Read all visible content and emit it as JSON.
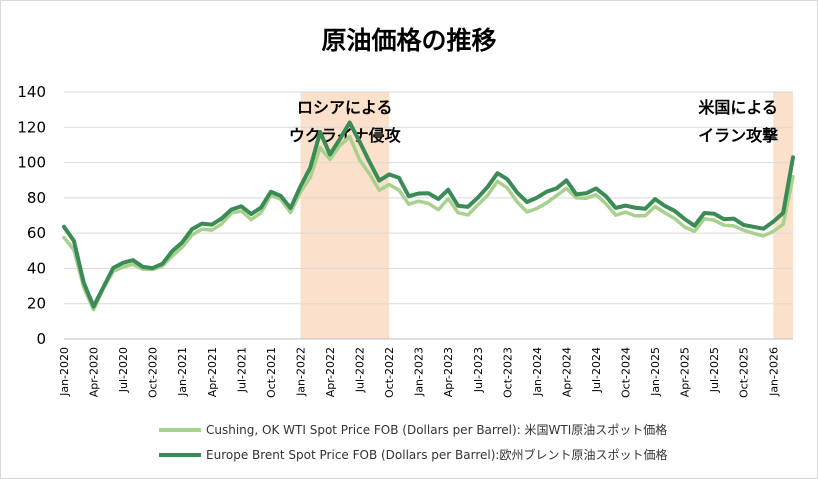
{
  "chart_data": {
    "type": "line",
    "title": "原油価格の推移",
    "ylim": [
      0,
      140
    ],
    "yticks": [
      "0",
      "20",
      "40",
      "60",
      "80",
      "100",
      "120",
      "140"
    ],
    "xticklabels": [
      "Jan-2020",
      "Apr-2020",
      "Jul-2020",
      "Oct-2020",
      "Jan-2021",
      "Apr-2021",
      "Jul-2021",
      "Oct-2021",
      "Jan-2022",
      "Apr-2022",
      "Jul-2022",
      "Oct-2022",
      "Jan-2023",
      "Apr-2023",
      "Jul-2023",
      "Oct-2023",
      "Jan-2024",
      "Apr-2024",
      "Jul-2024",
      "Oct-2024",
      "Jan-2025",
      "Apr-2025",
      "Jul-2025",
      "Oct-2025",
      "Jan-2026"
    ],
    "grid": "horizontal",
    "legend": "bottom",
    "shaded_periods": [
      {
        "start": "Jan-2022",
        "end": "Oct-2022",
        "label_lines": [
          "ロシアによる",
          "ウクライナ侵攻"
        ],
        "color": "#fbe0cc"
      },
      {
        "start": "Jan-2026",
        "end": "Mar-2026",
        "label_lines": [
          "米国による",
          "イラン攻撃"
        ],
        "color": "#fbe0cc"
      }
    ],
    "series": [
      {
        "name": "Cushing, OK WTI Spot Price FOB (Dollars per Barrel): 米国WTI原油スポット価格",
        "color": "#a9d18e",
        "values": [
          57.5,
          50.5,
          29.2,
          16.6,
          28.6,
          38.3,
          40.8,
          42.3,
          39.6,
          39.4,
          41.4,
          47.1,
          52.0,
          59.0,
          62.3,
          61.7,
          65.2,
          71.4,
          72.5,
          67.7,
          71.6,
          81.5,
          79.2,
          71.7,
          83.2,
          91.6,
          108.5,
          101.8,
          109.6,
          114.8,
          101.6,
          93.7,
          84.3,
          87.6,
          84.4,
          76.4,
          78.1,
          76.8,
          73.3,
          79.5,
          71.6,
          70.3,
          76.0,
          81.4,
          89.4,
          85.6,
          77.7,
          72.0,
          74.0,
          77.2,
          81.3,
          85.4,
          80.0,
          79.8,
          81.8,
          76.7,
          70.2,
          71.9,
          69.8,
          69.9,
          75.1,
          71.5,
          68.2,
          63.5,
          61.0,
          68.2,
          67.3,
          64.5,
          64.1,
          61.6,
          59.9,
          58.4,
          61.0,
          65.0,
          92.0
        ]
      },
      {
        "name": "Europe Brent Spot Price FOB (Dollars per Barrel):欧州ブレント原油スポット価格",
        "color": "#3a8b55",
        "values": [
          63.6,
          55.7,
          32.0,
          18.4,
          29.4,
          40.3,
          43.2,
          44.7,
          40.9,
          40.2,
          42.7,
          49.9,
          54.8,
          62.3,
          65.4,
          64.8,
          68.3,
          73.4,
          75.2,
          70.8,
          74.5,
          83.5,
          81.1,
          74.2,
          86.5,
          97.1,
          117.3,
          104.6,
          113.3,
          122.7,
          111.9,
          100.5,
          89.8,
          93.3,
          91.4,
          80.9,
          82.5,
          82.6,
          79.3,
          84.6,
          75.5,
          74.9,
          80.1,
          86.2,
          94.0,
          90.6,
          83.0,
          77.6,
          80.1,
          83.5,
          85.4,
          89.9,
          82.0,
          82.6,
          85.3,
          81.0,
          74.3,
          75.6,
          74.4,
          73.8,
          79.3,
          75.4,
          72.6,
          68.0,
          64.2,
          71.4,
          71.0,
          67.9,
          68.2,
          64.6,
          63.6,
          62.5,
          66.5,
          71.5,
          103.0
        ]
      }
    ]
  }
}
